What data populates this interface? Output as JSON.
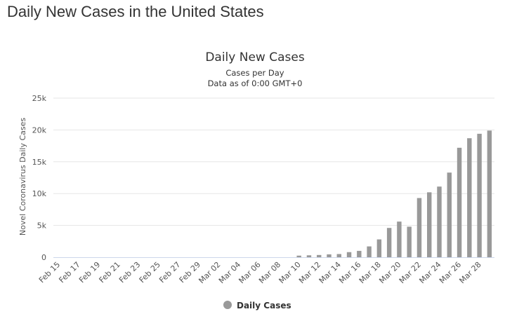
{
  "page": {
    "heading": "Daily New Cases in the United States"
  },
  "chart_data": {
    "type": "bar",
    "title": "Daily New Cases",
    "subtitle": "Cases per Day",
    "subtitle2": "Data as of 0:00 GMT+0",
    "xlabel": "",
    "ylabel": "Novel Coronavirus Daily Cases",
    "ylim": [
      0,
      25000
    ],
    "yticks": [
      0,
      5000,
      10000,
      15000,
      20000,
      25000
    ],
    "ytick_labels": [
      "0",
      "5k",
      "10k",
      "15k",
      "20k",
      "25k"
    ],
    "grid": true,
    "legend": {
      "position": "bottom-center",
      "entries": [
        "Daily Cases"
      ]
    },
    "categories": [
      "Feb 15",
      "Feb 16",
      "Feb 17",
      "Feb 18",
      "Feb 19",
      "Feb 20",
      "Feb 21",
      "Feb 22",
      "Feb 23",
      "Feb 24",
      "Feb 25",
      "Feb 26",
      "Feb 27",
      "Feb 28",
      "Feb 29",
      "Mar 01",
      "Mar 02",
      "Mar 03",
      "Mar 04",
      "Mar 05",
      "Mar 06",
      "Mar 07",
      "Mar 08",
      "Mar 09",
      "Mar 10",
      "Mar 11",
      "Mar 12",
      "Mar 13",
      "Mar 14",
      "Mar 15",
      "Mar 16",
      "Mar 17",
      "Mar 18",
      "Mar 19",
      "Mar 20",
      "Mar 21",
      "Mar 22",
      "Mar 23",
      "Mar 24",
      "Mar 25",
      "Mar 26",
      "Mar 27",
      "Mar 28",
      "Mar 29"
    ],
    "x_tick_labels": [
      "Feb 15",
      "Feb 17",
      "Feb 19",
      "Feb 21",
      "Feb 23",
      "Feb 25",
      "Feb 27",
      "Feb 29",
      "Mar 02",
      "Mar 04",
      "Mar 06",
      "Mar 08",
      "Mar 10",
      "Mar 12",
      "Mar 14",
      "Mar 16",
      "Mar 18",
      "Mar 20",
      "Mar 22",
      "Mar 24",
      "Mar 26",
      "Mar 28"
    ],
    "series": [
      {
        "name": "Daily Cases",
        "color": "#999999",
        "values": [
          0,
          0,
          0,
          0,
          0,
          0,
          0,
          0,
          0,
          0,
          0,
          0,
          0,
          0,
          0,
          0,
          0,
          0,
          0,
          0,
          0,
          0,
          0,
          0,
          250,
          300,
          350,
          450,
          500,
          800,
          1000,
          1700,
          2800,
          4600,
          5600,
          4800,
          9300,
          10200,
          11100,
          13300,
          17200,
          18700,
          19400,
          19900
        ]
      }
    ]
  }
}
